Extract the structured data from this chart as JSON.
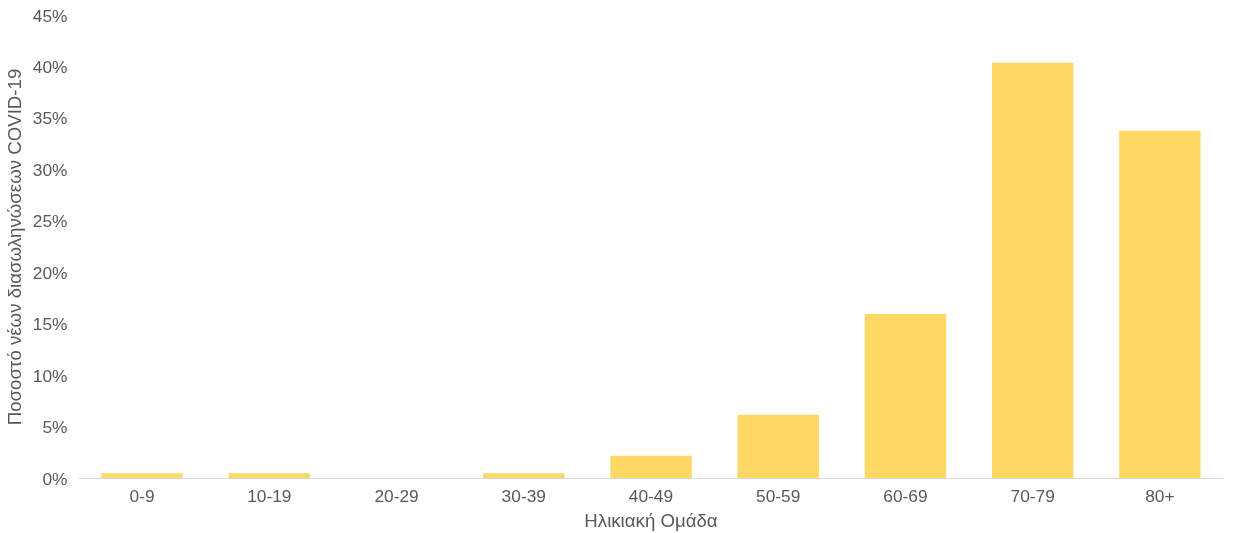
{
  "chart_data": {
    "type": "bar",
    "xlabel": "Ηλικιακή Ομάδα",
    "ylabel": "Ποσοστό νέων διασωληνώσεων COVID-19",
    "categories": [
      "0-9",
      "10-19",
      "20-29",
      "30-39",
      "40-49",
      "50-59",
      "60-69",
      "70-79",
      "80+"
    ],
    "values": [
      0.5,
      0.5,
      0,
      0.5,
      2.2,
      6.2,
      16.0,
      40.4,
      33.8
    ],
    "color": "#fdd865",
    "ylim": [
      0,
      45
    ],
    "yticks": [
      {
        "value": 0,
        "label": "0%"
      },
      {
        "value": 5,
        "label": "5%"
      },
      {
        "value": 10,
        "label": "10%"
      },
      {
        "value": 15,
        "label": "15%"
      },
      {
        "value": 20,
        "label": "20%"
      },
      {
        "value": 25,
        "label": "25%"
      },
      {
        "value": 30,
        "label": "30%"
      },
      {
        "value": 35,
        "label": "35%"
      },
      {
        "value": 40,
        "label": "40%"
      },
      {
        "value": 45,
        "label": "45%"
      }
    ],
    "grid": false
  }
}
